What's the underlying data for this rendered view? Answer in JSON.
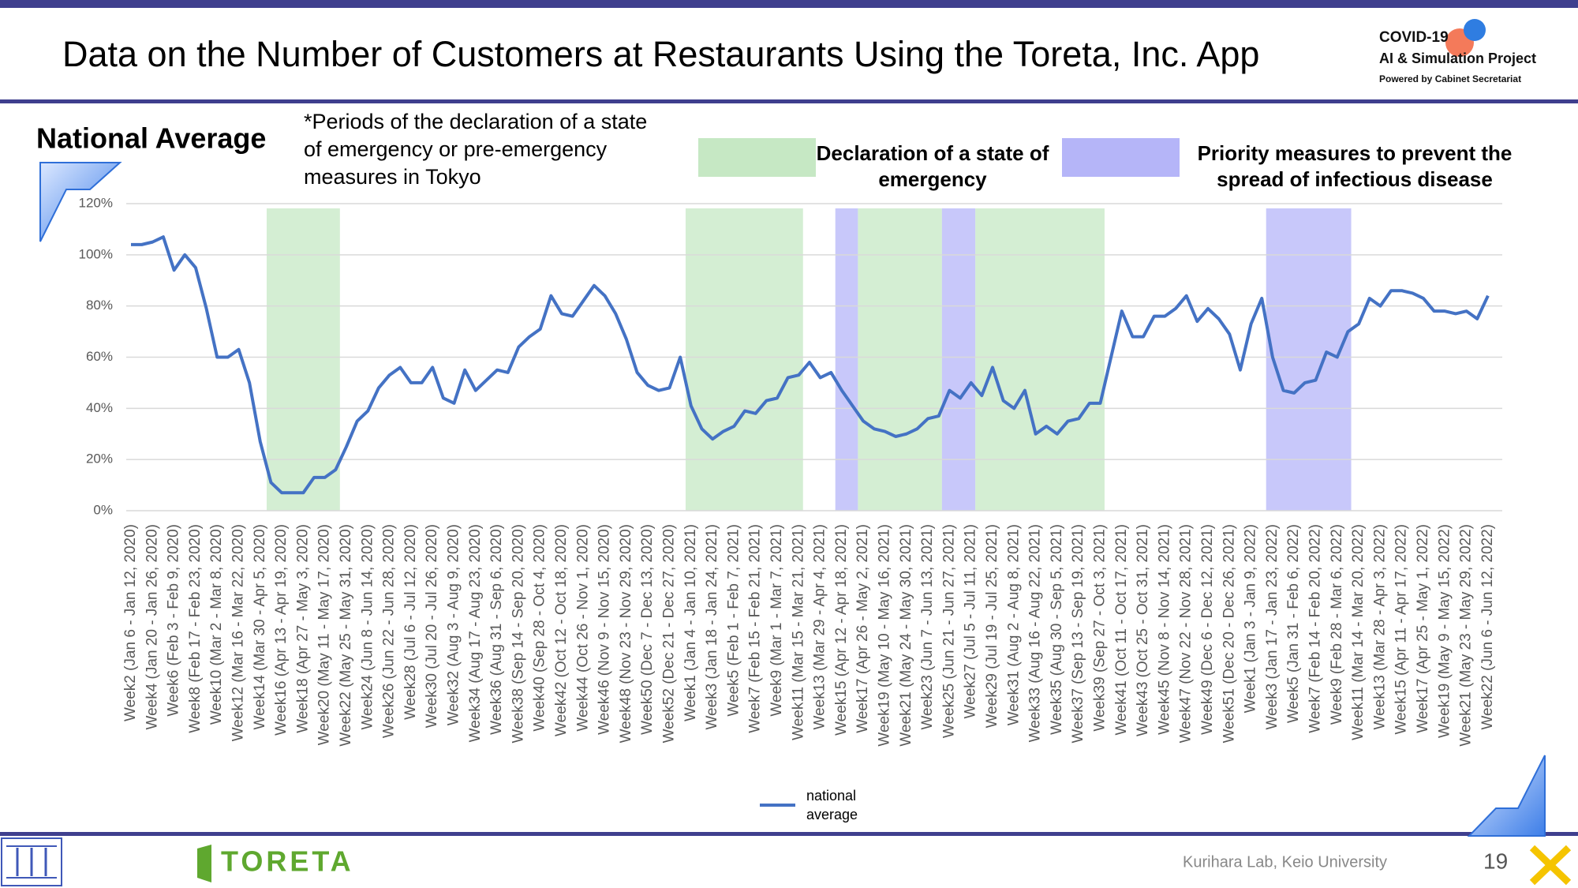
{
  "header": {
    "title": "Data on the Number of Customers at Restaurants Using the Toreta, Inc. App",
    "logo_line1": "COVID-19",
    "logo_line2": "AI & Simulation Project",
    "logo_line3": "Powered by Cabinet Secretariat"
  },
  "chart_data": {
    "type": "line",
    "title": "National Average",
    "note": [
      "*Periods of the declaration of a state",
      "of emergency or pre-emergency",
      "measures in Tokyo"
    ],
    "categories": [
      "Week2 (Jan 6 - Jan 12, 2020)",
      null,
      "Week4 (Jan 20 - Jan 26, 2020)",
      null,
      "Week6 (Feb 3 - Feb 9, 2020)",
      null,
      "Week8 (Feb 17 - Feb 23, 2020)",
      null,
      "Week10 (Mar 2 - Mar 8, 2020)",
      null,
      "Week12 (Mar 16 - Mar 22, 2020)",
      null,
      "Week14 (Mar 30 - Apr 5, 2020)",
      null,
      "Week16 (Apr 13 - Apr 19, 2020)",
      null,
      "Week18 (Apr 27 - May 3, 2020)",
      null,
      "Week20 (May 11 - May 17, 2020)",
      null,
      "Week22 (May 25 - May 31, 2020)",
      null,
      "Week24 (Jun 8 - Jun 14, 2020)",
      null,
      "Week26 (Jun 22 - Jun 28, 2020)",
      null,
      "Week28 (Jul 6 - Jul 12, 2020)",
      null,
      "Week30 (Jul 20 - Jul 26, 2020)",
      null,
      "Week32 (Aug 3 - Aug 9, 2020)",
      null,
      "Week34 (Aug 17 - Aug 23, 2020)",
      null,
      "Week36 (Aug 31 - Sep 6, 2020)",
      null,
      "Week38 (Sep 14 - Sep 20, 2020)",
      null,
      "Week40 (Sep 28 - Oct 4, 2020)",
      null,
      "Week42 (Oct 12 - Oct 18, 2020)",
      null,
      "Week44 (Oct 26 - Nov 1, 2020)",
      null,
      "Week46 (Nov 9 - Nov 15, 2020)",
      null,
      "Week48 (Nov 23 - Nov 29, 2020)",
      null,
      "Week50 (Dec 7 - Dec 13, 2020)",
      null,
      "Week52 (Dec 21 - Dec 27, 2020)",
      null,
      "Week1 (Jan 4 - Jan 10, 2021)",
      null,
      "Week3 (Jan 18 - Jan 24, 2021)",
      null,
      "Week5 (Feb 1 - Feb 7, 2021)",
      null,
      "Week7 (Feb 15 - Feb 21, 2021)",
      null,
      "Week9 (Mar 1 - Mar 7, 2021)",
      null,
      "Week11 (Mar 15 - Mar 21, 2021)",
      null,
      "Week13 (Mar 29 - Apr 4, 2021)",
      null,
      "Week15 (Apr 12 - Apr 18, 2021)",
      null,
      "Week17 (Apr 26 - May 2, 2021)",
      null,
      "Week19 (May 10 - May 16, 2021)",
      null,
      "Week21 (May 24 - May 30, 2021)",
      null,
      "Week23 (Jun 7 - Jun 13, 2021)",
      null,
      "Week25 (Jun 21 - Jun 27, 2021)",
      null,
      "Week27 (Jul 5 - Jul 11, 2021)",
      null,
      "Week29 (Jul 19 - Jul 25, 2021)",
      null,
      "Week31 (Aug 2 - Aug 8, 2021)",
      null,
      "Week33 (Aug 16 - Aug 22, 2021)",
      null,
      "Week35 (Aug 30 - Sep 5, 2021)",
      null,
      "Week37 (Sep 13 - Sep 19, 2021)",
      null,
      "Week39 (Sep 27 - Oct 3, 2021)",
      null,
      "Week41 (Oct 11 - Oct 17, 2021)",
      null,
      "Week43 (Oct 25 - Oct 31, 2021)",
      null,
      "Week45 (Nov 8 - Nov 14, 2021)",
      null,
      "Week47 (Nov 22 - Nov 28, 2021)",
      null,
      "Week49 (Dec 6 - Dec 12, 2021)",
      null,
      "Week51 (Dec 20 - Dec 26, 2021)",
      null,
      "Week1 (Jan 3 - Jan 9, 2022)",
      null,
      "Week3 (Jan 17 - Jan 23, 2022)",
      null,
      "Week5 (Jan 31 - Feb 6, 2022)",
      null,
      "Week7 (Feb 14 - Feb 20, 2022)",
      null,
      "Week9 (Feb 28 - Mar 6, 2022)",
      null,
      "Week11 (Mar 14 - Mar 20, 2022)",
      null,
      "Week13 (Mar 28 - Apr 3, 2022)",
      null,
      "Week15 (Apr 11 - Apr 17, 2022)",
      null,
      "Week17 (Apr 25 - May 1, 2022)",
      null,
      "Week19 (May 9 - May 15, 2022)",
      null,
      "Week21 (May 23 - May 29, 2022)",
      null,
      "Week22 (Jun 6 - Jun 12, 2022)"
    ],
    "series": [
      {
        "name": "national average",
        "color": "#4472c4",
        "values": [
          104,
          104,
          105,
          107,
          94,
          100,
          95,
          79,
          60,
          60,
          63,
          50,
          27,
          11,
          7,
          7,
          7,
          13,
          13,
          16,
          25,
          35,
          39,
          48,
          53,
          56,
          50,
          50,
          56,
          44,
          42,
          55,
          47,
          51,
          55,
          54,
          64,
          68,
          71,
          84,
          77,
          76,
          82,
          88,
          84,
          77,
          67,
          54,
          49,
          47,
          48,
          60,
          41,
          32,
          28,
          31,
          33,
          39,
          38,
          43,
          44,
          52,
          53,
          58,
          52,
          54,
          47,
          41,
          35,
          32,
          31,
          29,
          30,
          32,
          36,
          37,
          47,
          44,
          50,
          45,
          56,
          43,
          40,
          47,
          30,
          33,
          30,
          35,
          36,
          42,
          42,
          60,
          78,
          68,
          68,
          76,
          76,
          79,
          84,
          74,
          79,
          75,
          69,
          55,
          73,
          83,
          60,
          47,
          46,
          50,
          51,
          62,
          60,
          70,
          73,
          83,
          80,
          86,
          86,
          85,
          83,
          78,
          78,
          77,
          78,
          75,
          84
        ]
      }
    ],
    "ylim": [
      0,
      120
    ],
    "yticks": [
      {
        "value": 0,
        "label": "0%"
      },
      {
        "value": 20,
        "label": "20%"
      },
      {
        "value": 40,
        "label": "40%"
      },
      {
        "value": 60,
        "label": "60%"
      },
      {
        "value": 80,
        "label": "80%"
      },
      {
        "value": 100,
        "label": "100%"
      },
      {
        "value": 120,
        "label": "120%"
      }
    ],
    "grid": true,
    "period_legend": [
      {
        "label": "Declaration of a state of emergency",
        "color": "#c6e8c4"
      },
      {
        "label": "Priority measures to prevent the spread of infectious disease",
        "color": "#b5b5f8"
      }
    ],
    "periods": [
      {
        "legend": 0,
        "from": 12.6,
        "to": 19.4
      },
      {
        "legend": 0,
        "from": 51.5,
        "to": 62.4
      },
      {
        "legend": 1,
        "from": 65.4,
        "to": 67.5
      },
      {
        "legend": 0,
        "from": 67.5,
        "to": 75.3
      },
      {
        "legend": 1,
        "from": 75.3,
        "to": 78.4
      },
      {
        "legend": 0,
        "from": 78.4,
        "to": 90.4
      },
      {
        "legend": 1,
        "from": 105.4,
        "to": 113.3
      }
    ]
  },
  "footer": {
    "brand": "TORETA",
    "credit": "Kurihara Lab, Keio University",
    "page": "19"
  }
}
